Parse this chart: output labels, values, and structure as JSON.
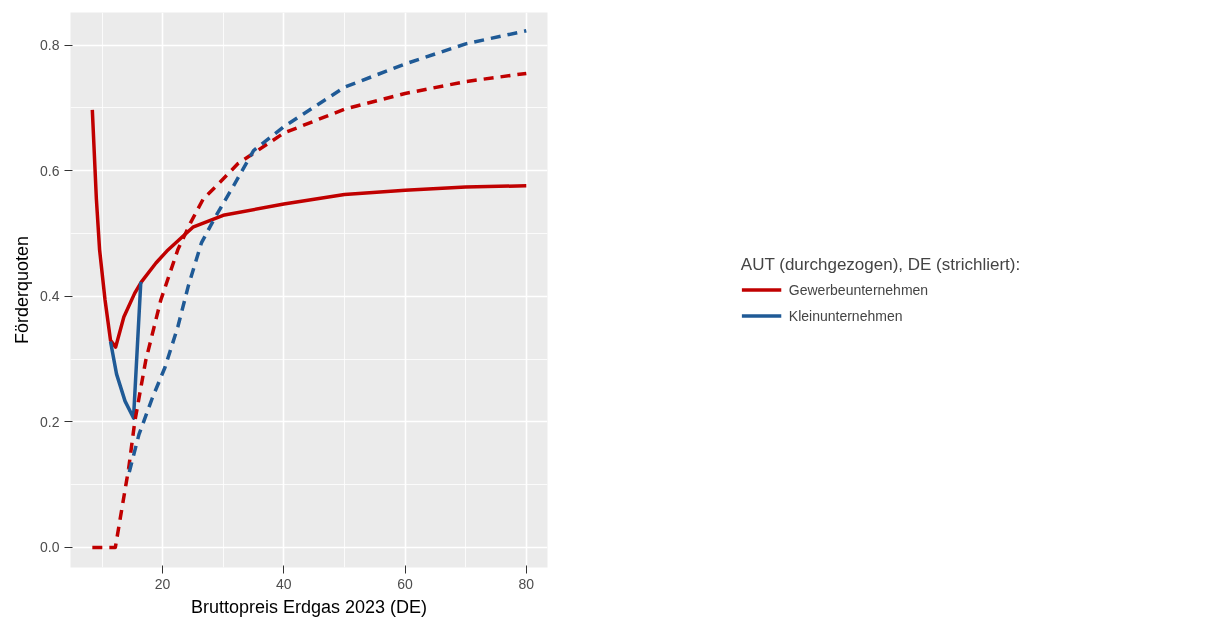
{
  "chart_data": {
    "type": "line",
    "xlabel": "Bruttopreis Erdgas 2023 (DE)",
    "ylabel": "Förderquoten",
    "legend_title": "AUT (durchgezogen), DE (strichliert):",
    "xlim": [
      4.8,
      83.5
    ],
    "ylim": [
      -0.032,
      0.852
    ],
    "xticks": [
      20,
      40,
      60,
      80
    ],
    "yticks": [
      {
        "value": 0,
        "label": "0.0"
      },
      {
        "value": 0.2,
        "label": "0.2"
      },
      {
        "value": 0.4,
        "label": "0.4"
      },
      {
        "value": 0.6,
        "label": "0.6"
      },
      {
        "value": 0.8,
        "label": "0.8"
      }
    ],
    "grid": true,
    "legend": "right",
    "series": [
      {
        "name": "Gewerbeunternehmen",
        "color": "#c00000",
        "line_style": "solid",
        "x": [
          8.4,
          9.07,
          9.6,
          10.5,
          11.4,
          12.25,
          13.6,
          15.4,
          16.5,
          18.9,
          20.7,
          23.4,
          25,
          30,
          40,
          50,
          60,
          70,
          80
        ],
        "values": [
          0.697,
          0.555,
          0.474,
          0.394,
          0.33,
          0.319,
          0.367,
          0.405,
          0.423,
          0.453,
          0.472,
          0.496,
          0.51,
          0.529,
          0.547,
          0.562,
          0.569,
          0.574,
          0.576
        ]
      },
      {
        "name": "Kleinunternehmen",
        "color": "#1f5a96",
        "line_style": "solid",
        "x": [
          11.4,
          12.4,
          13.8,
          15.2,
          16.4
        ],
        "values": [
          0.328,
          0.276,
          0.233,
          0.206,
          0.423
        ]
      },
      {
        "color": "#c00000",
        "line_style": "dashed",
        "x": [
          8.4,
          12.2,
          14.4,
          15.4,
          17.2,
          19.7,
          22.5,
          24.6,
          26.7,
          29.5,
          32.4,
          40,
          50,
          60,
          70,
          80
        ],
        "values": [
          0,
          0,
          0.126,
          0.2,
          0.297,
          0.394,
          0.474,
          0.517,
          0.555,
          0.582,
          0.611,
          0.66,
          0.698,
          0.723,
          0.742,
          0.755
        ]
      },
      {
        "color": "#1f5a96",
        "line_style": "dashed",
        "x": [
          14.5,
          16.1,
          18.3,
          20.4,
          22.5,
          24.2,
          26.4,
          28.5,
          31.7,
          35,
          40,
          50,
          60,
          70,
          80
        ],
        "values": [
          0.12,
          0.18,
          0.238,
          0.287,
          0.351,
          0.415,
          0.485,
          0.523,
          0.576,
          0.632,
          0.67,
          0.733,
          0.77,
          0.802,
          0.823
        ]
      }
    ]
  }
}
